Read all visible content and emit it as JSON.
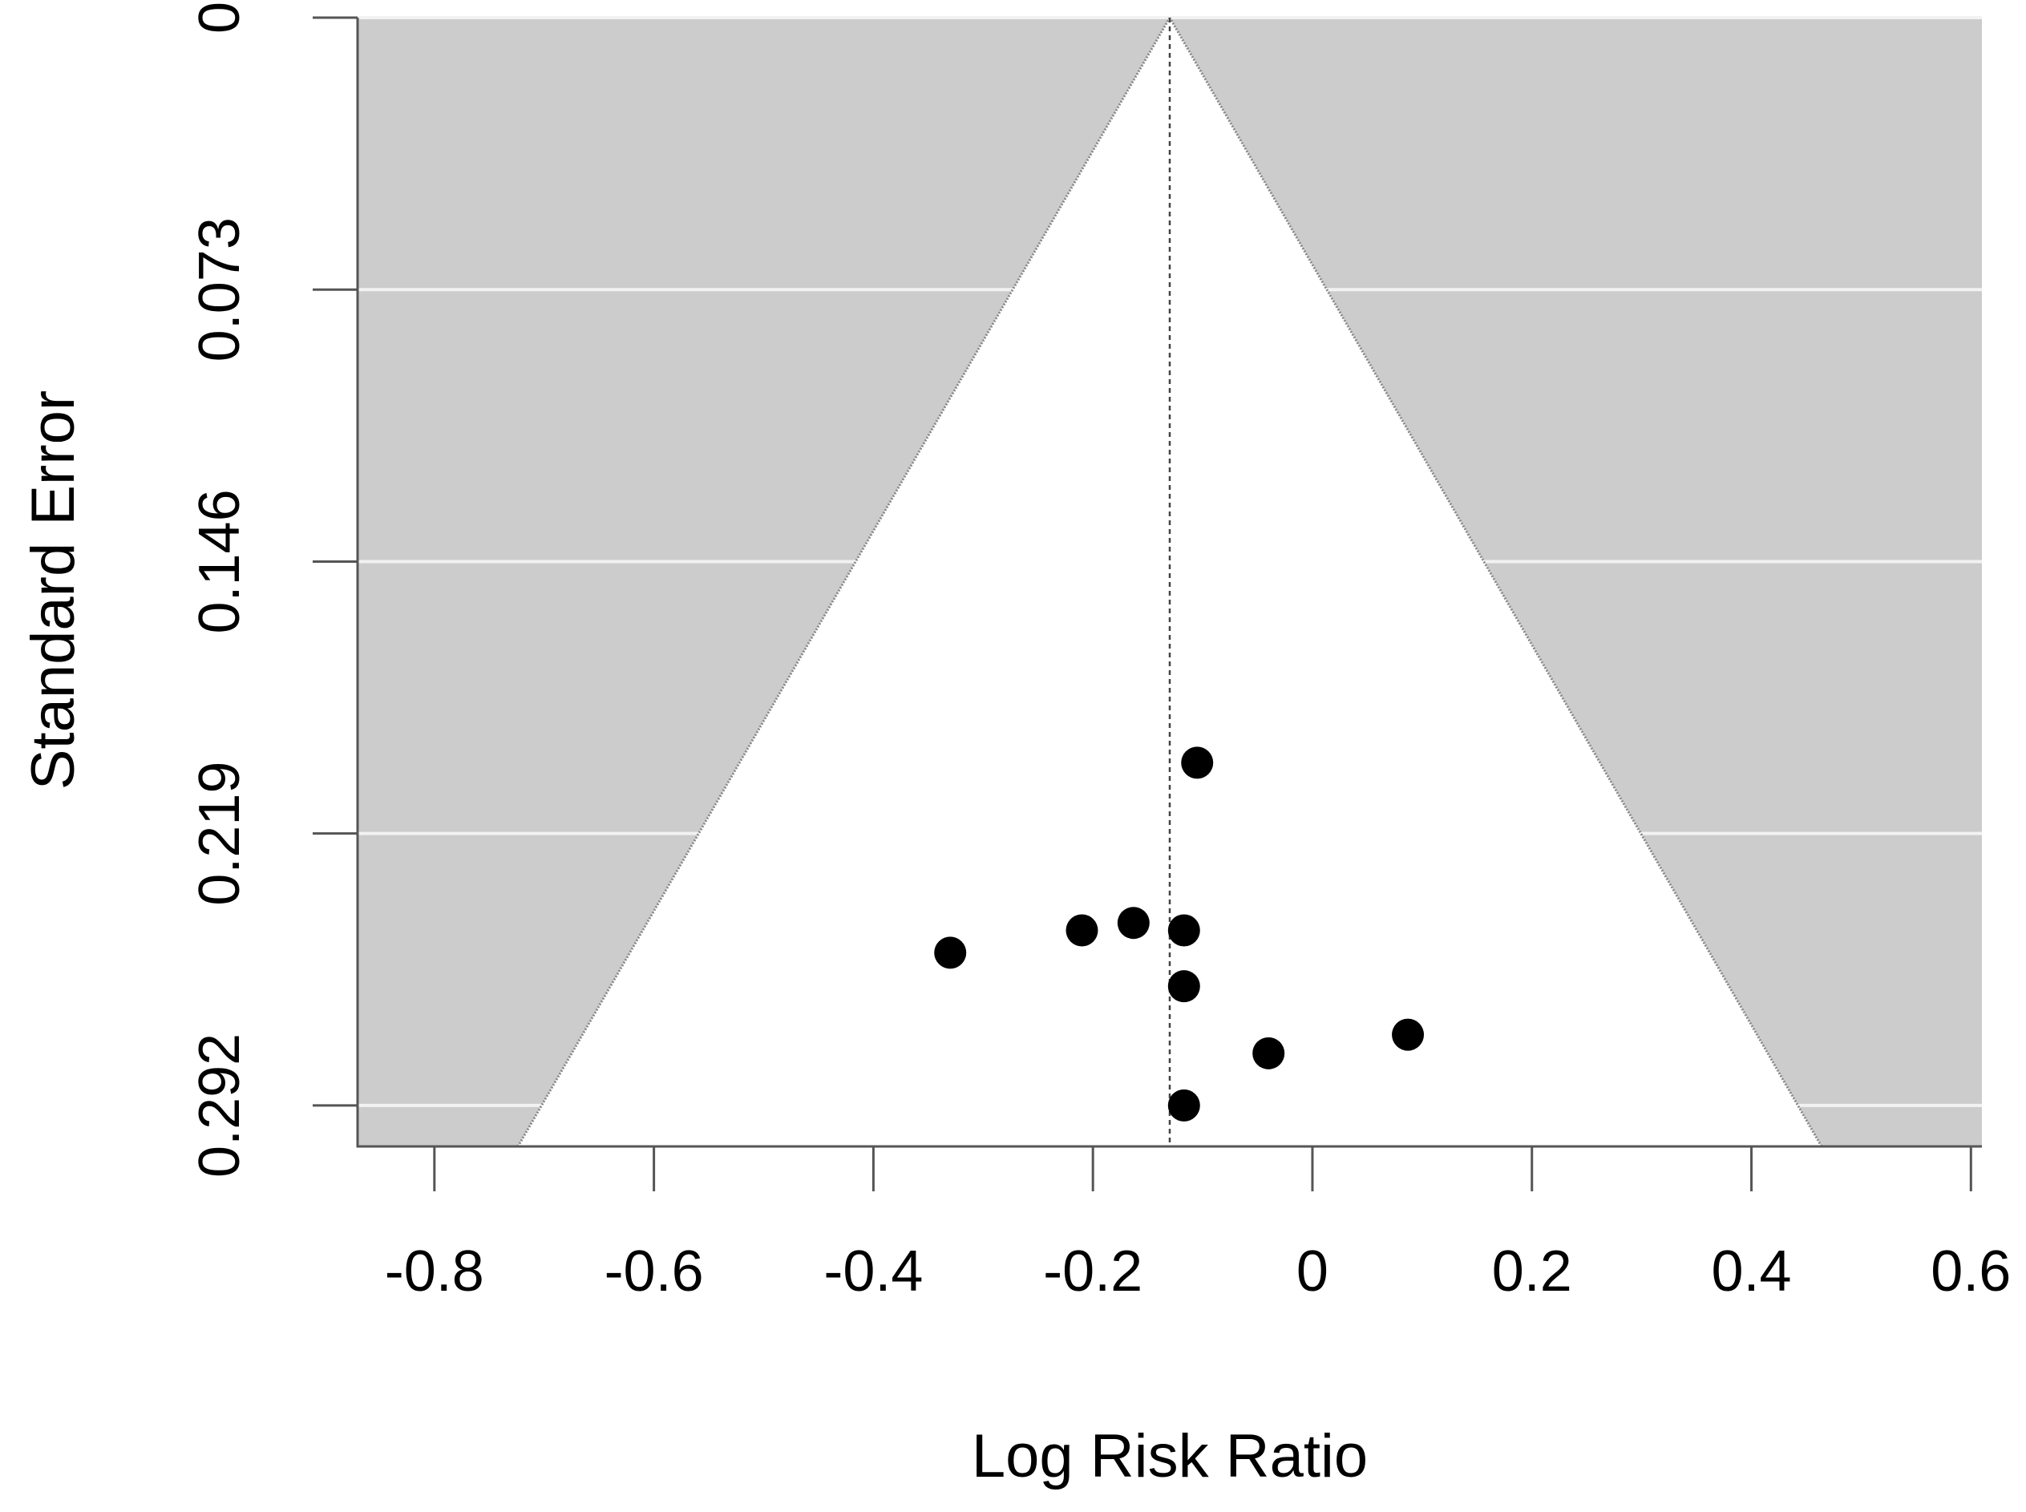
{
  "chart_data": {
    "type": "scatter",
    "subtype": "funnel-plot",
    "title": "",
    "xlabel": "Log Risk Ratio",
    "ylabel": "Standard Error",
    "xlim": [
      -0.87,
      0.61
    ],
    "ylim": [
      0,
      0.303
    ],
    "y_reversed": true,
    "x_ticks": [
      -0.8,
      -0.6,
      -0.4,
      -0.2,
      0,
      0.2,
      0.4,
      0.6
    ],
    "x_tick_labels": [
      "-0.8",
      "-0.6",
      "-0.4",
      "-0.2",
      "0",
      "0.2",
      "0.4",
      "0.6"
    ],
    "y_ticks": [
      0,
      0.073,
      0.146,
      0.219,
      0.292
    ],
    "y_tick_labels": [
      "0",
      "0.073",
      "0.146",
      "0.219",
      "0.292"
    ],
    "grid": true,
    "center": -0.13,
    "funnel_z": 1.96,
    "points": [
      {
        "x": -0.105,
        "y": 0.2
      },
      {
        "x": -0.33,
        "y": 0.251
      },
      {
        "x": -0.21,
        "y": 0.245
      },
      {
        "x": -0.163,
        "y": 0.243
      },
      {
        "x": -0.117,
        "y": 0.245
      },
      {
        "x": -0.117,
        "y": 0.26
      },
      {
        "x": -0.04,
        "y": 0.278
      },
      {
        "x": 0.087,
        "y": 0.273
      },
      {
        "x": -0.117,
        "y": 0.292
      }
    ],
    "colors": {
      "background_outside_funnel": "#cccccc",
      "funnel_fill": "#ffffff",
      "grid": "#f2f2f2",
      "points": "#000000",
      "axis": "#555555",
      "funnel_edge": "#888888"
    }
  }
}
